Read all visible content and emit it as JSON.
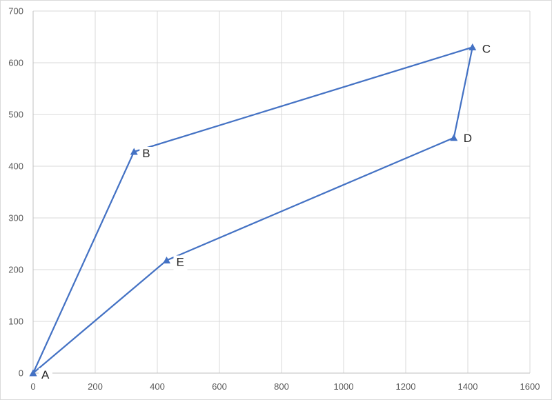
{
  "chart_data": {
    "type": "scatter",
    "title": "",
    "xlabel": "",
    "ylabel": "",
    "xlim": [
      0,
      1600
    ],
    "ylim": [
      0,
      700
    ],
    "xticks": [
      0,
      200,
      400,
      600,
      800,
      1000,
      1200,
      1400,
      1600
    ],
    "yticks": [
      0,
      100,
      200,
      300,
      400,
      500,
      600,
      700
    ],
    "grid": true,
    "legend": "none",
    "series": [
      {
        "color": "#4472C4",
        "marker": "triangle",
        "lines": "straight",
        "points": [
          {
            "label": "A",
            "x": 0,
            "y": 0
          },
          {
            "label": "B",
            "x": 325,
            "y": 428
          },
          {
            "label": "C",
            "x": 1415,
            "y": 630
          },
          {
            "label": "D",
            "x": 1355,
            "y": 455
          },
          {
            "label": "E",
            "x": 430,
            "y": 218
          },
          {
            "label": "",
            "x": 0,
            "y": 0
          }
        ]
      }
    ]
  }
}
